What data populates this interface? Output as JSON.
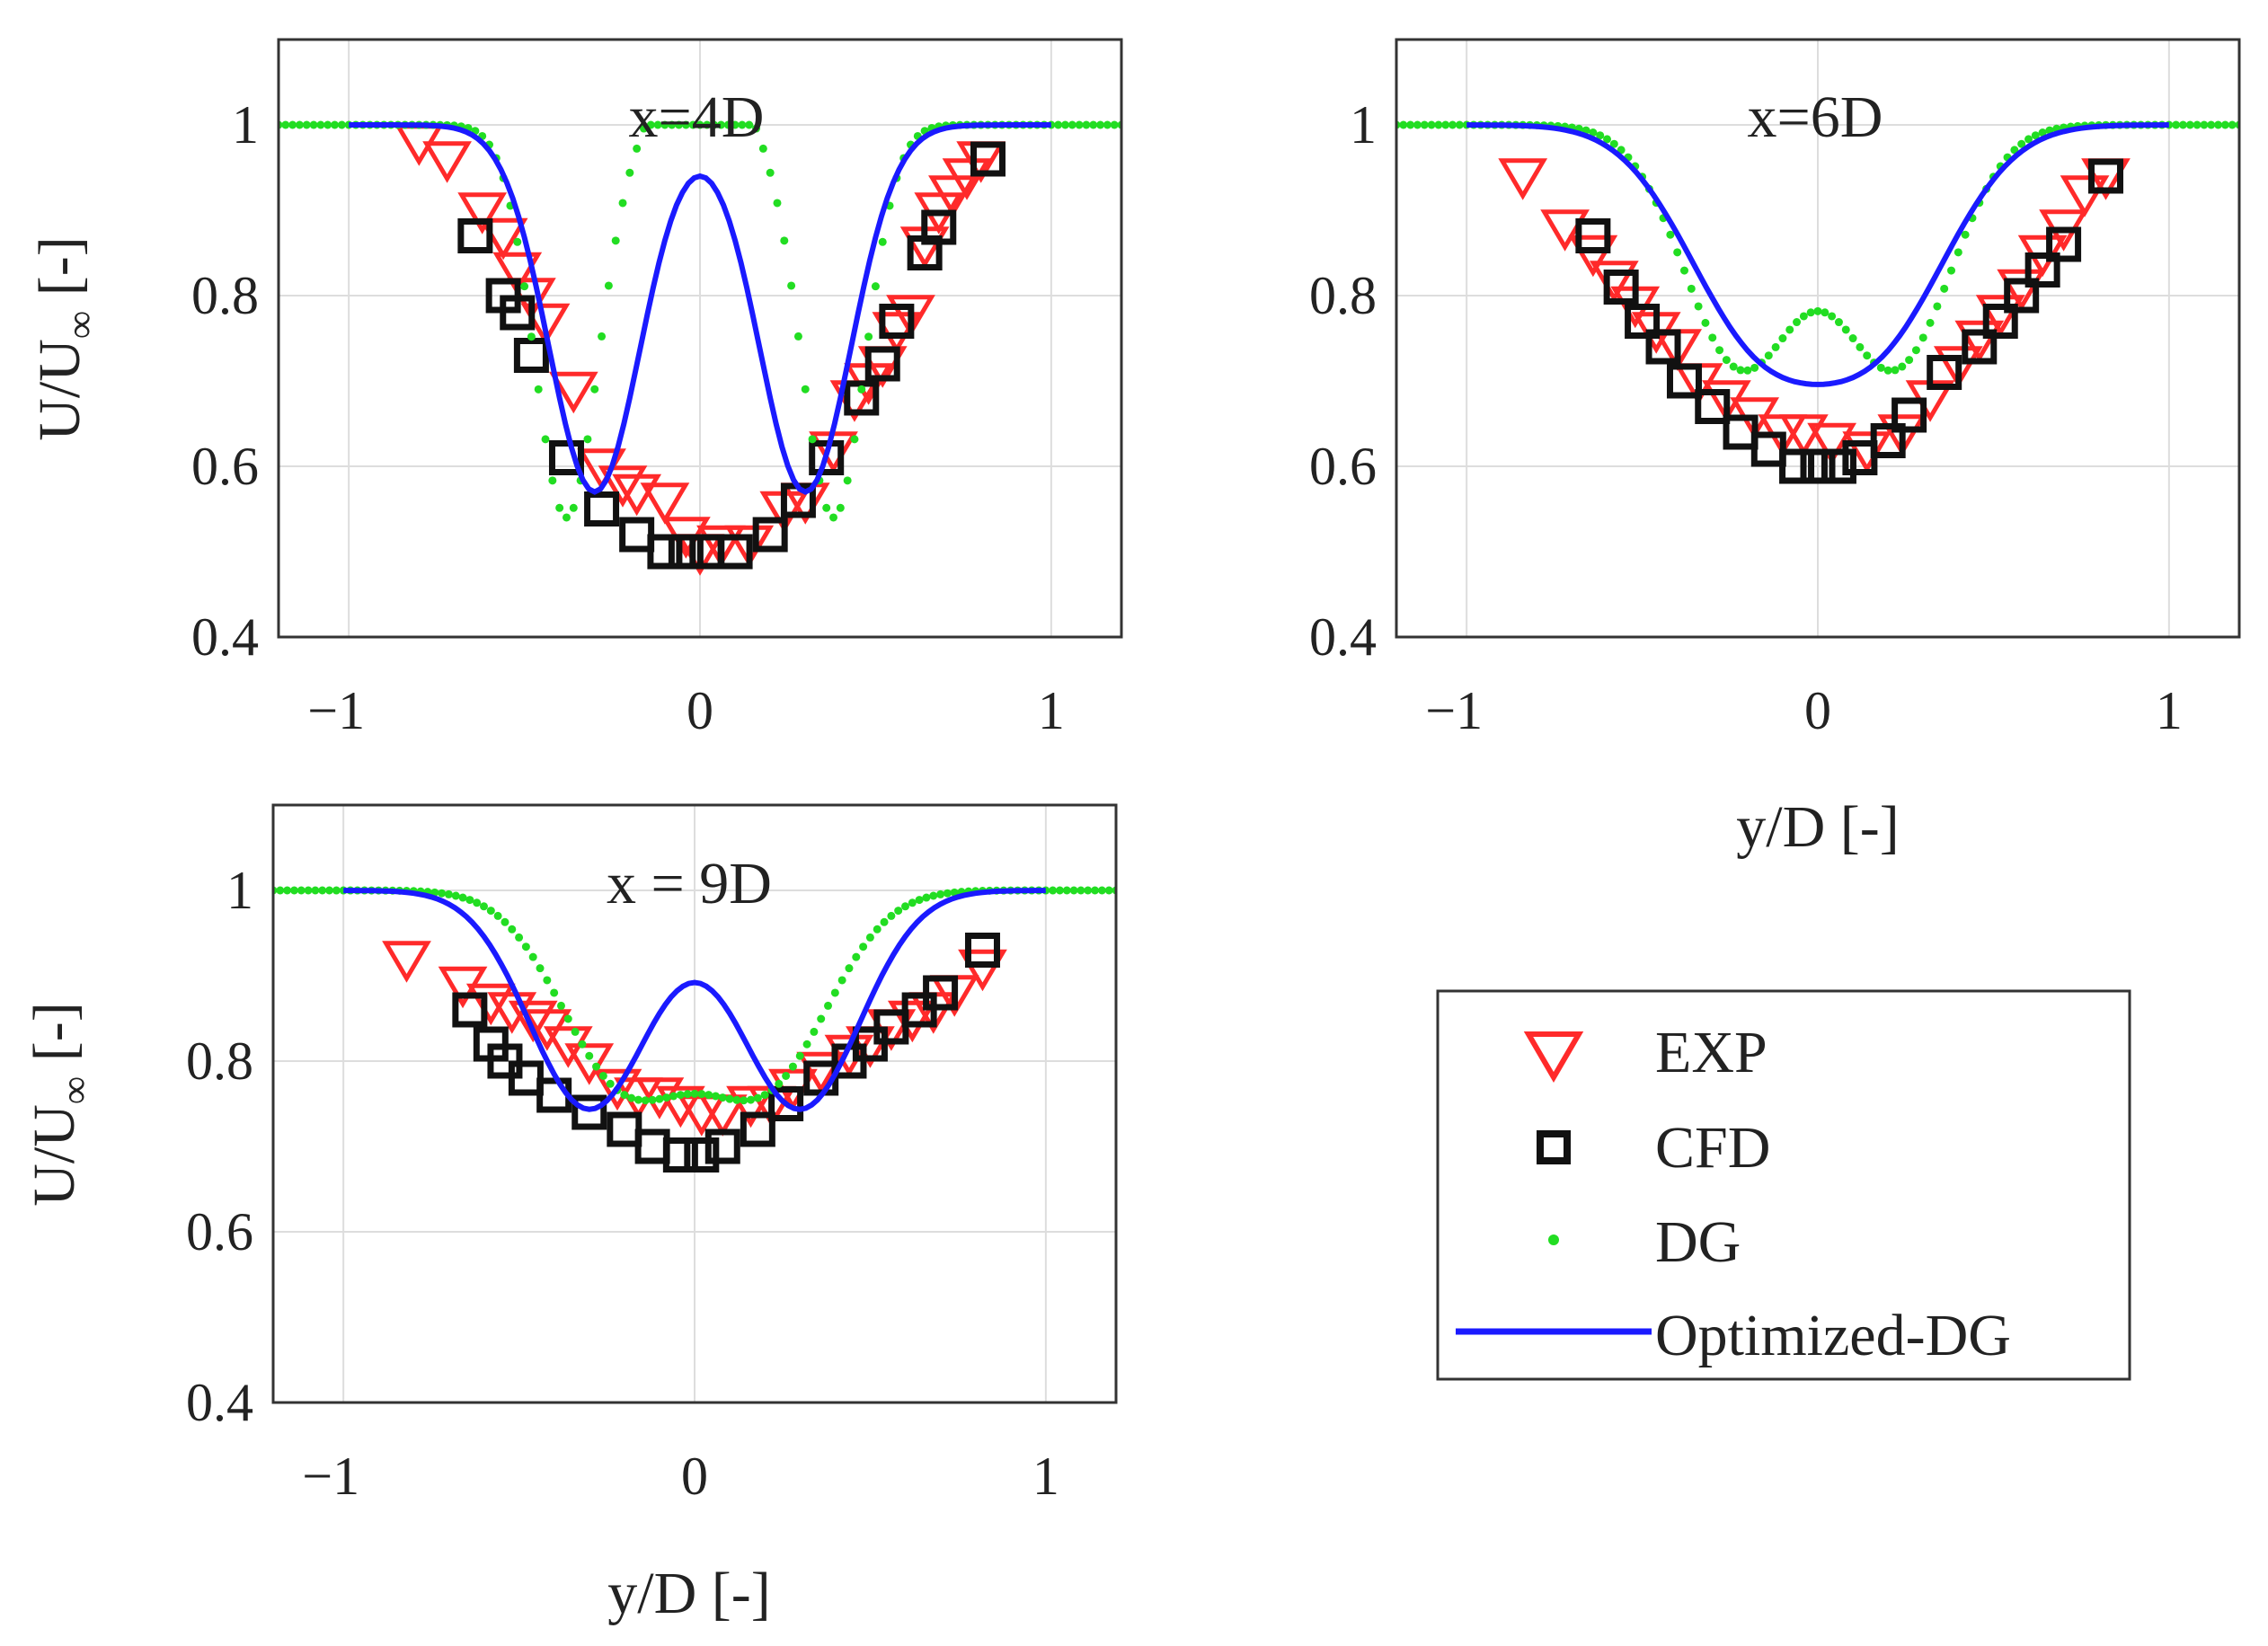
{
  "colors": {
    "exp": "#ff2a2a",
    "cfd": "#111111",
    "dg": "#22dd22",
    "opt": "#1a1aff",
    "grid": "#dddddd",
    "axis": "#333333"
  },
  "legend": {
    "exp": "EXP",
    "cfd": "CFD",
    "dg": "DG",
    "opt": "Optimized-DG"
  },
  "chart_data": [
    {
      "type": "line",
      "title": "x=4D",
      "xlabel": "",
      "ylabel_main": "U/U",
      "ylabel_sub": "∞",
      "ylabel_unit": " [-]",
      "xlim": [
        -1.2,
        1.2
      ],
      "ylim": [
        0.4,
        1.1
      ],
      "xticks": [
        -1,
        0,
        1
      ],
      "xtick_labels": [
        "−1",
        "0",
        "1"
      ],
      "yticks": [
        0.4,
        0.6,
        0.8,
        1
      ],
      "ytick_labels": [
        "0.4",
        "0.6",
        "0.8",
        "1"
      ],
      "series": [
        {
          "name": "EXP",
          "marker": "triangle-down",
          "x": [
            -0.8,
            -0.72,
            -0.62,
            -0.56,
            -0.52,
            -0.48,
            -0.44,
            -0.36,
            -0.28,
            -0.22,
            -0.18,
            -0.1,
            -0.04,
            0.0,
            0.06,
            0.14,
            0.24,
            0.3,
            0.38,
            0.44,
            0.48,
            0.52,
            0.56,
            0.6,
            0.64,
            0.68,
            0.72,
            0.76,
            0.8
          ],
          "y": [
            0.98,
            0.96,
            0.9,
            0.87,
            0.83,
            0.8,
            0.77,
            0.69,
            0.6,
            0.58,
            0.57,
            0.56,
            0.52,
            0.5,
            0.51,
            0.51,
            0.55,
            0.56,
            0.62,
            0.68,
            0.7,
            0.72,
            0.76,
            0.78,
            0.86,
            0.9,
            0.92,
            0.94,
            0.96
          ]
        },
        {
          "name": "CFD",
          "marker": "square",
          "x": [
            -0.64,
            -0.56,
            -0.52,
            -0.48,
            -0.38,
            -0.28,
            -0.18,
            -0.1,
            -0.04,
            0.02,
            0.1,
            0.2,
            0.28,
            0.36,
            0.46,
            0.52,
            0.56,
            0.64,
            0.68,
            0.82
          ],
          "y": [
            0.87,
            0.8,
            0.78,
            0.73,
            0.61,
            0.55,
            0.52,
            0.5,
            0.5,
            0.5,
            0.5,
            0.52,
            0.56,
            0.61,
            0.68,
            0.72,
            0.77,
            0.85,
            0.88,
            0.96
          ]
        },
        {
          "name": "DG",
          "marker": "dot",
          "type": "dg",
          "x_from": -1.2,
          "x_to": 1.2,
          "n": 121
        },
        {
          "name": "Optimized-DG",
          "marker": "line",
          "type": "opt",
          "x_from": -1.0,
          "x_to": 1.0,
          "n": 121
        }
      ],
      "dg_model": {
        "a": 0.46,
        "mu": 0.38,
        "s": 0.09,
        "pa": 0.14,
        "ps": 0.08,
        "w": 0.95
      },
      "opt_model": {
        "a": 0.46,
        "mu": 0.3,
        "s": 0.13,
        "pa": 0.0,
        "ps": 0.1,
        "w": 0.95
      }
    },
    {
      "type": "line",
      "title": "x=6D",
      "xlabel": "y/D [-]",
      "xlim": [
        -1.2,
        1.2
      ],
      "ylim": [
        0.4,
        1.1
      ],
      "xticks": [
        -1,
        0,
        1
      ],
      "xtick_labels": [
        "−1",
        "0",
        "1"
      ],
      "yticks": [
        0.4,
        0.6,
        0.8,
        1
      ],
      "ytick_labels": [
        "0.4",
        "0.6",
        "0.8",
        "1"
      ],
      "series": [
        {
          "name": "EXP",
          "marker": "triangle-down",
          "x": [
            -0.84,
            -0.72,
            -0.64,
            -0.58,
            -0.52,
            -0.46,
            -0.4,
            -0.34,
            -0.26,
            -0.18,
            -0.1,
            -0.04,
            0.04,
            0.14,
            0.24,
            0.32,
            0.4,
            0.46,
            0.52,
            0.58,
            0.64,
            0.7,
            0.76,
            0.82
          ],
          "y": [
            0.94,
            0.88,
            0.85,
            0.82,
            0.79,
            0.76,
            0.74,
            0.7,
            0.68,
            0.66,
            0.64,
            0.64,
            0.63,
            0.62,
            0.64,
            0.68,
            0.72,
            0.75,
            0.78,
            0.81,
            0.85,
            0.88,
            0.92,
            0.94
          ]
        },
        {
          "name": "CFD",
          "marker": "square",
          "x": [
            -0.64,
            -0.56,
            -0.5,
            -0.44,
            -0.38,
            -0.3,
            -0.22,
            -0.14,
            -0.06,
            0.0,
            0.06,
            0.12,
            0.2,
            0.26,
            0.36,
            0.46,
            0.52,
            0.58,
            0.64,
            0.7,
            0.82
          ],
          "y": [
            0.87,
            0.81,
            0.77,
            0.74,
            0.7,
            0.67,
            0.64,
            0.62,
            0.6,
            0.6,
            0.6,
            0.61,
            0.63,
            0.66,
            0.71,
            0.74,
            0.77,
            0.8,
            0.83,
            0.86,
            0.94
          ]
        },
        {
          "name": "DG",
          "marker": "dot",
          "type": "dg",
          "x_from": -1.2,
          "x_to": 1.2,
          "n": 121
        },
        {
          "name": "Optimized-DG",
          "marker": "line",
          "type": "opt",
          "x_from": -1.0,
          "x_to": 1.0,
          "n": 121
        }
      ],
      "dg_model": {
        "a": 0.39,
        "mu": 0.22,
        "s": 0.16,
        "pa": 0.0,
        "ps": 0.1,
        "w": 1.05
      },
      "opt_model": {
        "a": 0.38,
        "mu": 0.18,
        "s": 0.2,
        "pa": 0.0,
        "ps": 0.1,
        "w": 1.0
      }
    },
    {
      "type": "line",
      "title": "x = 9D",
      "xlabel": "y/D [-]",
      "ylabel_main": "U/U",
      "ylabel_sub": "∞",
      "ylabel_unit": " [-]",
      "xlim": [
        -1.2,
        1.2
      ],
      "ylim": [
        0.4,
        1.1
      ],
      "xticks": [
        -1,
        0,
        1
      ],
      "xtick_labels": [
        "−1",
        "0",
        "1"
      ],
      "yticks": [
        0.4,
        0.6,
        0.8,
        1
      ],
      "ytick_labels": [
        "0.4",
        "0.6",
        "0.8",
        "1"
      ],
      "series": [
        {
          "name": "EXP",
          "marker": "triangle-down",
          "x": [
            -0.82,
            -0.66,
            -0.58,
            -0.52,
            -0.46,
            -0.42,
            -0.36,
            -0.3,
            -0.22,
            -0.16,
            -0.1,
            -0.04,
            0.02,
            0.08,
            0.16,
            0.22,
            0.28,
            0.36,
            0.44,
            0.5,
            0.56,
            0.62,
            0.68,
            0.74,
            0.82
          ],
          "y": [
            0.92,
            0.89,
            0.87,
            0.86,
            0.85,
            0.84,
            0.82,
            0.8,
            0.77,
            0.76,
            0.76,
            0.75,
            0.74,
            0.74,
            0.75,
            0.75,
            0.77,
            0.79,
            0.81,
            0.82,
            0.84,
            0.85,
            0.86,
            0.88,
            0.91
          ]
        },
        {
          "name": "CFD",
          "marker": "square",
          "x": [
            -0.64,
            -0.58,
            -0.54,
            -0.48,
            -0.4,
            -0.3,
            -0.2,
            -0.12,
            -0.04,
            0.02,
            0.08,
            0.18,
            0.26,
            0.36,
            0.44,
            0.5,
            0.56,
            0.64,
            0.7,
            0.82
          ],
          "y": [
            0.86,
            0.82,
            0.8,
            0.78,
            0.76,
            0.74,
            0.72,
            0.7,
            0.69,
            0.69,
            0.7,
            0.72,
            0.75,
            0.78,
            0.8,
            0.82,
            0.84,
            0.86,
            0.88,
            0.93
          ]
        },
        {
          "name": "DG",
          "marker": "dot",
          "type": "dg",
          "x_from": -1.2,
          "x_to": 1.2,
          "n": 121
        },
        {
          "name": "Optimized-DG",
          "marker": "line",
          "type": "opt",
          "x_from": -1.0,
          "x_to": 1.0,
          "n": 121
        }
      ],
      "dg_model": {
        "a": 0.34,
        "mu": 0.2,
        "s": 0.18,
        "pa": 0.0,
        "ps": 0.1,
        "w": 1.05
      },
      "opt_model": {
        "a": 0.31,
        "mu": 0.3,
        "s": 0.17,
        "pa": 0.0,
        "ps": 0.1,
        "w": 1.0
      }
    }
  ]
}
